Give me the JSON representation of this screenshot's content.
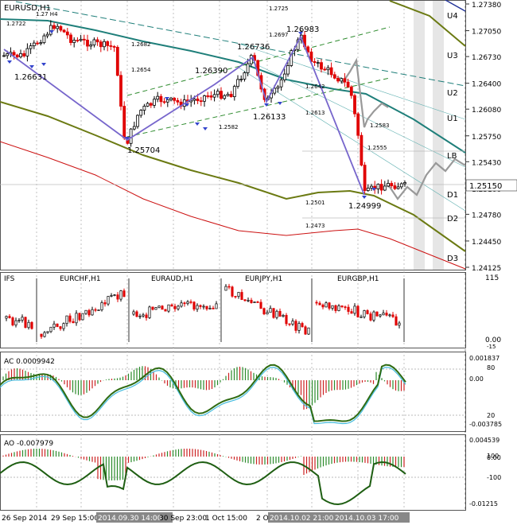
{
  "panels": {
    "main": {
      "title": "EURUSD,H1",
      "current_price": "1.25150",
      "price_axis": [
        "1.27380",
        "1.27050",
        "1.26730",
        "1.26400",
        "1.26080",
        "1.25750",
        "1.25430",
        "1.25100",
        "1.24780",
        "1.24450",
        "1.24125"
      ],
      "level_labels": [
        "U4",
        "U3",
        "U2",
        "U1",
        "LB",
        "D1",
        "D2",
        "D3"
      ],
      "zigzag_labels": [
        "1.26631",
        "1.25704",
        "1.26390",
        "1.26736",
        "1.26983",
        "1.26133",
        "1.24999"
      ],
      "small_labels": [
        "1.2722",
        "1.27 H4",
        "1.2682",
        "1.2654",
        "1.2725",
        "1.2697",
        "1.2642",
        "1.2613",
        "1.2582",
        "1.2583",
        "1.2555",
        "1.2501",
        "1.2473"
      ]
    },
    "ifs": {
      "title": "IFS",
      "instruments": [
        "EURCHF,H1",
        "EURAUD,H1",
        "EURJPY,H1",
        "EURGBP,H1"
      ],
      "axis": [
        "115",
        "0.00",
        "-15"
      ]
    },
    "ac": {
      "title": "AC 0.0009942",
      "axis": [
        "0.001837",
        "80",
        "0.00",
        "20",
        "-0.003785"
      ]
    },
    "ao": {
      "title": "AO -0.007979",
      "axis": [
        "0.004539",
        "100",
        "0.00",
        "-100",
        "-0.01215"
      ]
    }
  },
  "time_axis": [
    "26 Sep 2014",
    "29 Sep 15:00",
    "2014.09.30 14:00",
    "30 Sep 23:00",
    "1 Oct 15:00",
    "2 Oct",
    "2014.10.02 21:00",
    "2014.10.03 17:00"
  ],
  "chart_data": {
    "type": "candlestick",
    "symbol": "EURUSD",
    "timeframe": "H1",
    "zigzag": [
      1.26631,
      1.25704,
      1.2639,
      1.26736,
      1.26133,
      1.26983,
      1.24999
    ],
    "last_price": 1.2515,
    "ylim": [
      1.24125,
      1.2738
    ]
  },
  "colors": {
    "bull": "#000000",
    "bear": "#e00000",
    "teal": "#1f7f7a",
    "olive": "#6b7a12",
    "zigzag": "#7766cc",
    "red_line": "#cc1111",
    "green_line": "#2e8b2e"
  }
}
